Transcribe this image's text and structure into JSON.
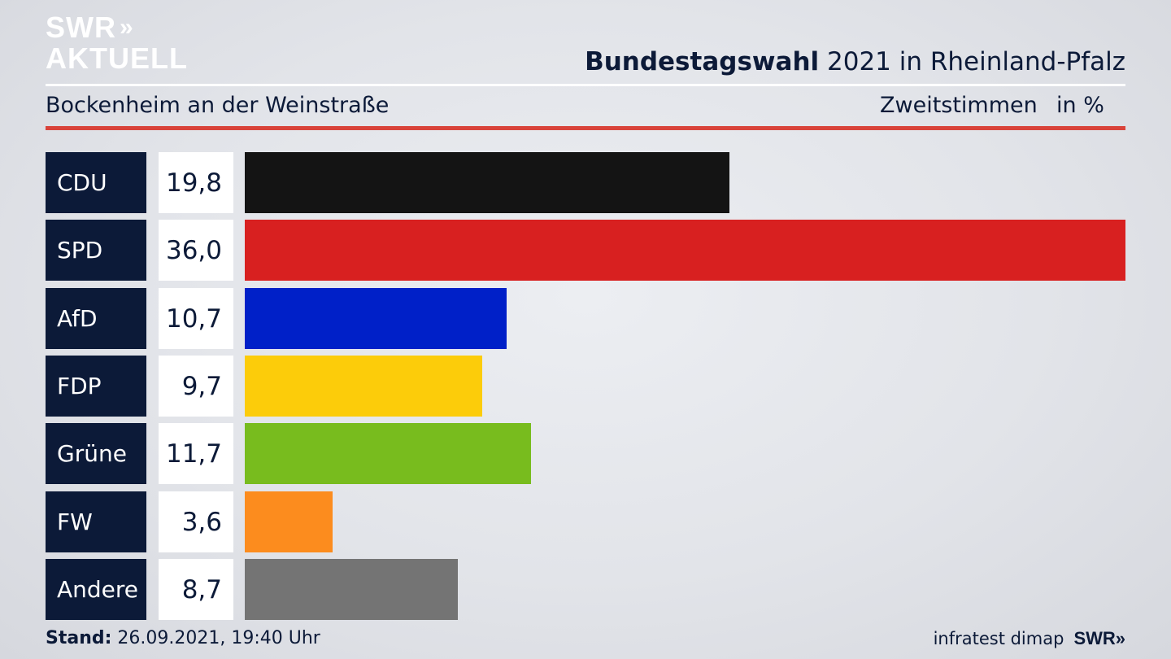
{
  "logo": {
    "line1": "SWR",
    "arrows": "»",
    "line2": "AKTUELL"
  },
  "header": {
    "title_bold": "Bundestagswahl",
    "title_rest": " 2021 in Rheinland-Pfalz",
    "subtitle": "Bockenheim an der Weinstraße",
    "measure": "Zweitstimmen",
    "unit": "in %"
  },
  "footer": {
    "stand_label": "Stand:",
    "stand_value": " 26.09.2021, 19:40 Uhr",
    "source": "infratest dimap",
    "brand": "SWR»"
  },
  "chart_data": {
    "type": "bar",
    "orientation": "horizontal",
    "categories": [
      "CDU",
      "SPD",
      "AfD",
      "FDP",
      "Grüne",
      "FW",
      "Andere"
    ],
    "values": [
      19.8,
      36.0,
      10.7,
      9.7,
      11.7,
      3.6,
      8.7
    ],
    "value_labels": [
      "19,8",
      "36,0",
      "10,7",
      "9,7",
      "11,7",
      "3,6",
      "8,7"
    ],
    "colors": [
      "#141414",
      "#d82020",
      "#0020c8",
      "#fccc0a",
      "#78bc1e",
      "#fc8c1e",
      "#747474"
    ],
    "xlim": [
      0,
      36.0
    ],
    "grid": false,
    "legend": "none"
  }
}
